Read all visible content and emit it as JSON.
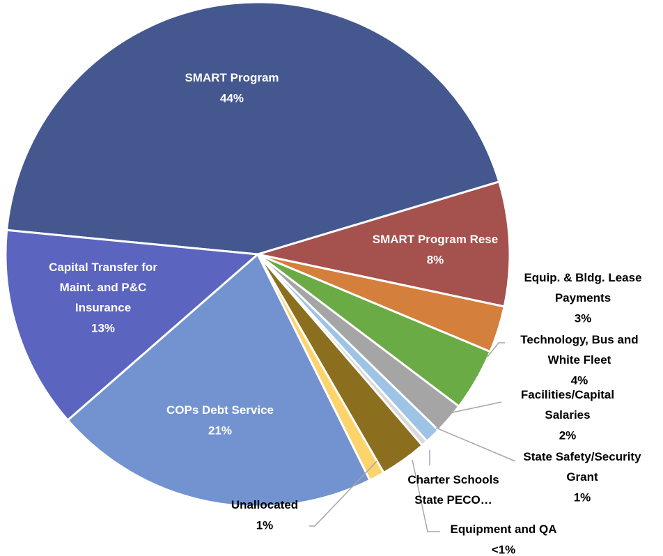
{
  "chart_data": {
    "type": "pie",
    "categories": [
      "SMART Program",
      "SMART Program Rese",
      "Equip. & Bldg. Lease Payments",
      "Technology, Bus and White Fleet",
      "Facilities/Capital Salaries",
      "State Safety/Security Grant",
      "Equipment and QA",
      "Charter Schools State PECO…",
      "Unallocated",
      "COPs Debt Service",
      "Capital Transfer for Maint. and P&C Insurance"
    ],
    "values": [
      44,
      8,
      3,
      4,
      2,
      1,
      0.4,
      3,
      1,
      21,
      13
    ],
    "value_labels": [
      "44%",
      "8%",
      "3%",
      "4%",
      "2%",
      "1%",
      "<1%",
      null,
      "1%",
      "21%",
      "13%"
    ],
    "colors": [
      "#44578f",
      "#a5514d",
      "#d47f3c",
      "#6aab46",
      "#a5a5a5",
      "#9dc3e6",
      "#d9d9d9",
      "#8b6f1e",
      "#fdd36b",
      "#7293cf",
      "#5b64bf"
    ]
  }
}
